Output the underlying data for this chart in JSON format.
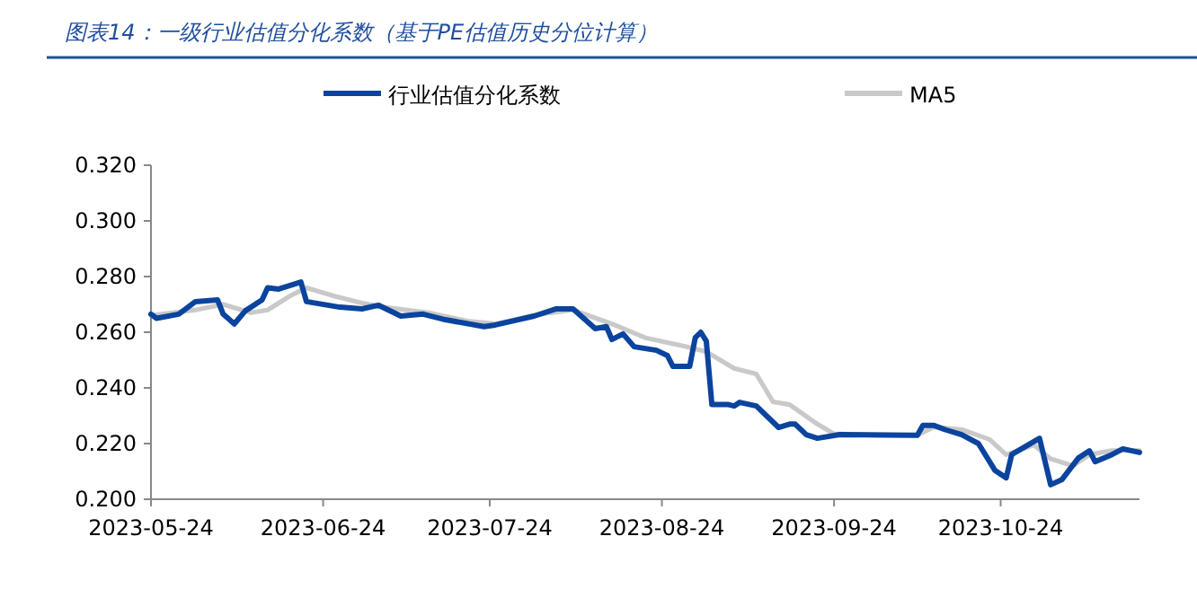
{
  "chart_data": {
    "type": "line",
    "title": "图表14：一级行业估值分化系数（基于PE估值历史分位计算）",
    "legend": "top",
    "grid": false,
    "xlim": [
      "2023-05-24",
      "2023-11-18"
    ],
    "xticks": [
      "2023-05-24",
      "2023-06-24",
      "2023-07-24",
      "2023-08-24",
      "2023-09-24",
      "2023-10-24"
    ],
    "ylim": [
      0.2,
      0.32
    ],
    "yticks": [
      {
        "value": 0.2,
        "label": "0.200"
      },
      {
        "value": 0.22,
        "label": "0.220"
      },
      {
        "value": 0.24,
        "label": "0.240"
      },
      {
        "value": 0.26,
        "label": "0.260"
      },
      {
        "value": 0.28,
        "label": "0.280"
      },
      {
        "value": 0.3,
        "label": "0.300"
      },
      {
        "value": 0.32,
        "label": "0.320"
      }
    ],
    "series": [
      {
        "name": "行业估值分化系数",
        "color": "#0b449e",
        "x": [
          "2023-05-24",
          "2023-05-25",
          "2023-05-29",
          "2023-06-01",
          "2023-06-05",
          "2023-06-06",
          "2023-06-08",
          "2023-06-10",
          "2023-06-13",
          "2023-06-14",
          "2023-06-16",
          "2023-06-20",
          "2023-06-21",
          "2023-06-27",
          "2023-07-01",
          "2023-07-04",
          "2023-07-08",
          "2023-07-12",
          "2023-07-16",
          "2023-07-23",
          "2023-07-25",
          "2023-08-01",
          "2023-08-05",
          "2023-08-08",
          "2023-08-12",
          "2023-08-14",
          "2023-08-15",
          "2023-08-17",
          "2023-08-19",
          "2023-08-23",
          "2023-08-25",
          "2023-08-26",
          "2023-08-29",
          "2023-08-30",
          "2023-08-31",
          "2023-09-01",
          "2023-09-02",
          "2023-09-05",
          "2023-09-06",
          "2023-09-07",
          "2023-09-10",
          "2023-09-14",
          "2023-09-16",
          "2023-09-17",
          "2023-09-19",
          "2023-09-21",
          "2023-09-25",
          "2023-10-09",
          "2023-10-10",
          "2023-10-12",
          "2023-10-14",
          "2023-10-17",
          "2023-10-20",
          "2023-10-23",
          "2023-10-25",
          "2023-10-26",
          "2023-10-31",
          "2023-11-02",
          "2023-11-04",
          "2023-11-07",
          "2023-11-09",
          "2023-11-10",
          "2023-11-13",
          "2023-11-15",
          "2023-11-18"
        ],
        "values": [
          0.2665,
          0.265,
          0.2665,
          0.271,
          0.2716,
          0.2665,
          0.263,
          0.2677,
          0.2716,
          0.276,
          0.2755,
          0.278,
          0.271,
          0.269,
          0.2684,
          0.2697,
          0.2658,
          0.2665,
          0.2645,
          0.262,
          0.2626,
          0.2658,
          0.2684,
          0.2684,
          0.2613,
          0.262,
          0.2574,
          0.2594,
          0.2548,
          0.2535,
          0.2516,
          0.2477,
          0.2477,
          0.258,
          0.26,
          0.2568,
          0.234,
          0.234,
          0.2335,
          0.2348,
          0.2335,
          0.2258,
          0.227,
          0.227,
          0.2232,
          0.2219,
          0.2232,
          0.223,
          0.2265,
          0.2265,
          0.225,
          0.2232,
          0.22,
          0.2103,
          0.2077,
          0.2161,
          0.2219,
          0.2052,
          0.207,
          0.2148,
          0.2174,
          0.2135,
          0.216,
          0.2181,
          0.2168
        ]
      },
      {
        "name": "MA5",
        "color": "#c9c9c9",
        "x": [
          "2023-05-24",
          "2023-06-01",
          "2023-06-06",
          "2023-06-11",
          "2023-06-14",
          "2023-06-18",
          "2023-06-21",
          "2023-06-26",
          "2023-07-01",
          "2023-07-05",
          "2023-07-13",
          "2023-07-20",
          "2023-07-25",
          "2023-08-02",
          "2023-08-08",
          "2023-08-15",
          "2023-08-21",
          "2023-08-28",
          "2023-09-01",
          "2023-09-06",
          "2023-09-10",
          "2023-09-13",
          "2023-09-16",
          "2023-09-21",
          "2023-09-24",
          "2023-10-02",
          "2023-10-09",
          "2023-10-12",
          "2023-10-17",
          "2023-10-22",
          "2023-10-25",
          "2023-10-30",
          "2023-11-02",
          "2023-11-06",
          "2023-11-09",
          "2023-11-13",
          "2023-11-18"
        ],
        "values": [
          0.266,
          0.268,
          0.27,
          0.267,
          0.268,
          0.273,
          0.276,
          0.273,
          0.2705,
          0.269,
          0.267,
          0.264,
          0.263,
          0.2665,
          0.268,
          0.263,
          0.258,
          0.255,
          0.253,
          0.247,
          0.245,
          0.235,
          0.234,
          0.227,
          0.2235,
          0.223,
          0.223,
          0.226,
          0.225,
          0.2215,
          0.216,
          0.2195,
          0.2145,
          0.212,
          0.216,
          0.2175,
          0.2175
        ]
      }
    ]
  }
}
